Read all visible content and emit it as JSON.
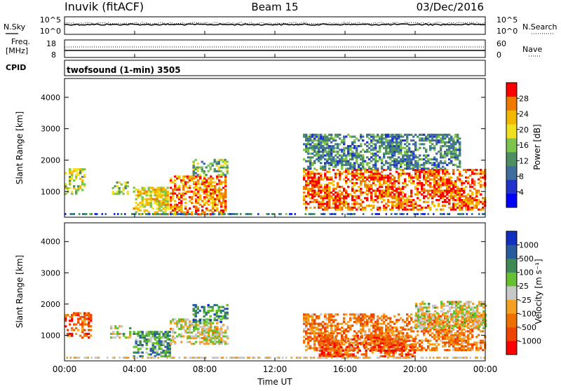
{
  "header": {
    "station": "Inuvik (fitACF)",
    "beam": "Beam 15",
    "date": "03/Dec/2016"
  },
  "noise_panel": {
    "left_label": "N.Sky",
    "right_label": "N.Search",
    "left_ticks": [
      "10^5",
      "10^0"
    ],
    "right_ticks": [
      "10^5",
      "10^0"
    ]
  },
  "freq_panel": {
    "left_label_line1": "Freq.",
    "left_label_line2": "[MHz]",
    "left_ticks": [
      "18",
      "8"
    ],
    "right_label": "Nave",
    "right_ticks": [
      "60",
      "0"
    ]
  },
  "cpid": {
    "label": "CPID",
    "program": "twofsound (1-min) 3505"
  },
  "chart_data": [
    {
      "type": "heatmap",
      "name": "power",
      "ylabel": "Slant Range [km]",
      "ylim": [
        180,
        4600
      ],
      "yticks": [
        "4000",
        "3000",
        "2000",
        "1000"
      ],
      "xlim": [
        "00:00",
        "24:00"
      ],
      "colorbar_label": "Power [dB]",
      "colorbar_ticks": [
        "28",
        "24",
        "20",
        "16",
        "12",
        "8",
        "4"
      ],
      "colorbar_colors": [
        "#0000ff",
        "#2233cc",
        "#3d6e9e",
        "#4d8f62",
        "#7cc44b",
        "#f0e020",
        "#f5b800",
        "#ee7a00",
        "#ff0000"
      ],
      "regions": [
        {
          "t0": 0.0,
          "t1": 1.2,
          "r0": 900,
          "r1": 1700,
          "level": 0.55
        },
        {
          "t0": 2.7,
          "t1": 3.6,
          "r0": 900,
          "r1": 1300,
          "level": 0.5
        },
        {
          "t0": 3.9,
          "t1": 5.9,
          "r0": 250,
          "r1": 1100,
          "level": 0.65
        },
        {
          "t0": 6.0,
          "t1": 9.2,
          "r0": 250,
          "r1": 1500,
          "level": 0.8
        },
        {
          "t0": 7.3,
          "t1": 9.3,
          "r0": 1500,
          "r1": 2000,
          "level": 0.45
        },
        {
          "t0": 13.6,
          "t1": 24.0,
          "r0": 400,
          "r1": 1700,
          "level": 0.85
        },
        {
          "t0": 13.6,
          "t1": 22.5,
          "r0": 1700,
          "r1": 2800,
          "level": 0.35
        }
      ]
    },
    {
      "type": "heatmap",
      "name": "velocity",
      "ylabel": "Slant Range [km]",
      "ylim": [
        180,
        4600
      ],
      "yticks": [
        "4000",
        "3000",
        "2000",
        "1000"
      ],
      "xlabel": "Time UT",
      "xticks": [
        "00:00",
        "04:00",
        "08:00",
        "12:00",
        "16:00",
        "20:00",
        "00:00"
      ],
      "colorbar_label": "Velocity [m s⁻¹]",
      "colorbar_ticks": [
        "1000",
        "500",
        "100",
        "25",
        "-25",
        "-100",
        "-500",
        "-1000"
      ],
      "colorbar_colors": [
        "#ff0000",
        "#ee4400",
        "#ee7000",
        "#f5a020",
        "#c8c8c8",
        "#66c030",
        "#3d8a55",
        "#2a5aa0",
        "#1030c0"
      ],
      "regions": [
        {
          "t0": 0.0,
          "t1": 1.5,
          "r0": 900,
          "r1": 1700,
          "level": 0.2
        },
        {
          "t0": 2.6,
          "t1": 3.7,
          "r0": 900,
          "r1": 1300,
          "level": 0.5
        },
        {
          "t0": 3.9,
          "t1": 6.0,
          "r0": 300,
          "r1": 1100,
          "level": 0.7
        },
        {
          "t0": 6.0,
          "t1": 9.3,
          "r0": 700,
          "r1": 1500,
          "level": 0.5
        },
        {
          "t0": 7.3,
          "t1": 9.3,
          "r0": 1400,
          "r1": 2000,
          "level": 0.75
        },
        {
          "t0": 13.6,
          "t1": 24.0,
          "r0": 500,
          "r1": 1700,
          "level": 0.3
        },
        {
          "t0": 14.5,
          "t1": 20.0,
          "r0": 300,
          "r1": 1000,
          "level": 0.2
        },
        {
          "t0": 20.0,
          "t1": 24.0,
          "r0": 1200,
          "r1": 2100,
          "level": 0.5
        }
      ]
    }
  ]
}
